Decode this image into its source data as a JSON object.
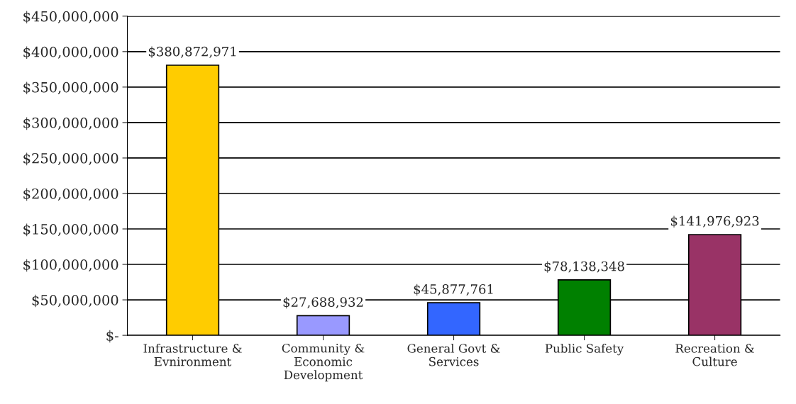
{
  "chart_data": {
    "type": "bar",
    "categories": [
      "Infrastructure &\nEvnironment",
      "Community &\nEconomic\nDevelopment",
      "General Govt &\nServices",
      "Public Safety",
      "Recreation &\nCulture"
    ],
    "values": [
      380872971,
      27688932,
      45877761,
      78138348,
      141976923
    ],
    "colors": [
      "#ffcc00",
      "#9999ff",
      "#3366ff",
      "#008000",
      "#993366"
    ],
    "value_labels": [
      "$380,872,971",
      "$27,688,932",
      "$45,877,761",
      "$78,138,348",
      "$141,976,923"
    ],
    "ylim": [
      0,
      450000000
    ],
    "yticks": [
      {
        "value": 0,
        "label": "$-"
      },
      {
        "value": 50000000,
        "label": "$50,000,000"
      },
      {
        "value": 100000000,
        "label": "$100,000,000"
      },
      {
        "value": 150000000,
        "label": "$150,000,000"
      },
      {
        "value": 200000000,
        "label": "$200,000,000"
      },
      {
        "value": 250000000,
        "label": "$250,000,000"
      },
      {
        "value": 300000000,
        "label": "$300,000,000"
      },
      {
        "value": 350000000,
        "label": "$350,000,000"
      },
      {
        "value": 400000000,
        "label": "$400,000,000"
      },
      {
        "value": 450000000,
        "label": "$450,000,000"
      }
    ],
    "grid": "y"
  }
}
